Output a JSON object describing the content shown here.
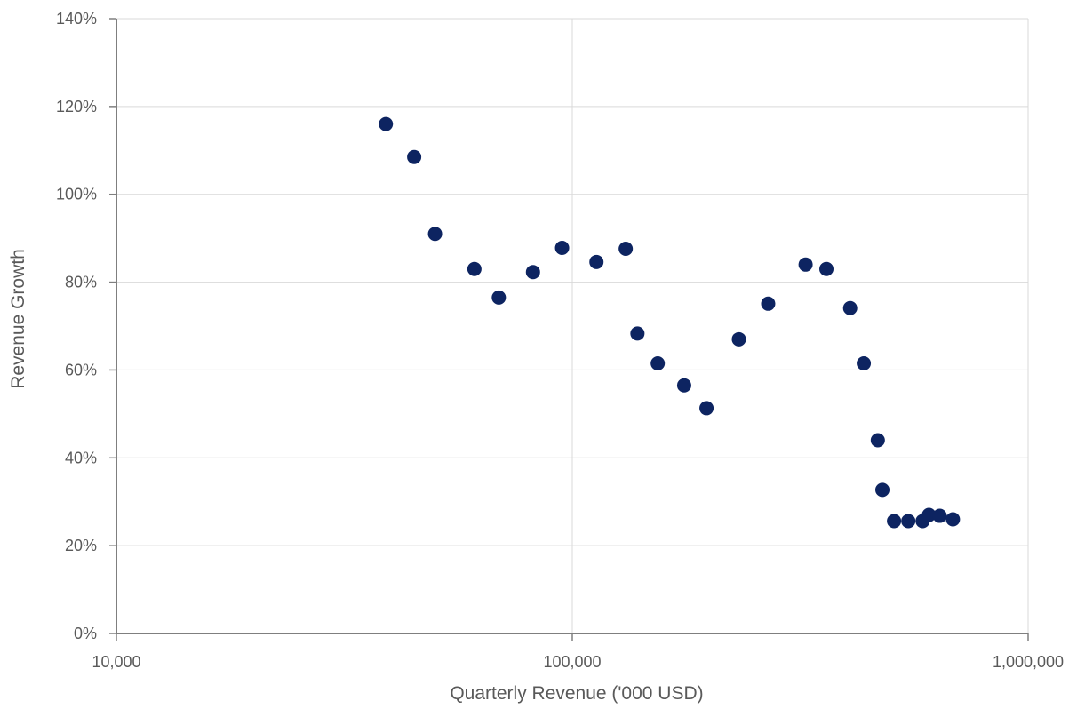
{
  "chart_data": {
    "type": "scatter",
    "title": "",
    "xlabel": "Quarterly Revenue ('000 USD)",
    "ylabel": "Revenue Growth",
    "x_scale": "log",
    "xlim": [
      10000,
      1000000
    ],
    "ylim": [
      0,
      1.4
    ],
    "x_ticks": [
      10000,
      100000,
      1000000
    ],
    "x_tick_labels": [
      "10,000",
      "100,000",
      "1,000,000"
    ],
    "y_ticks": [
      0,
      0.2,
      0.4,
      0.6,
      0.8,
      1.0,
      1.2,
      1.4
    ],
    "y_tick_labels": [
      "0%",
      "20%",
      "40%",
      "60%",
      "80%",
      "100%",
      "120%",
      "140%"
    ],
    "grid": true,
    "legend": "none",
    "marker_color": "#0d2461",
    "series": [
      {
        "x": [
          39000,
          45000,
          50000,
          61000,
          69000,
          82000,
          95000,
          113000,
          131000,
          139000,
          154000,
          176000,
          197000,
          232000,
          269000,
          325000,
          361000,
          407000,
          436000,
          468000,
          479000,
          508000,
          546000,
          587000,
          606000,
          640000,
          684000
        ],
        "y": [
          1.16,
          1.085,
          0.91,
          0.83,
          0.765,
          0.823,
          0.878,
          0.846,
          0.876,
          0.683,
          0.615,
          0.565,
          0.513,
          0.67,
          0.751,
          0.84,
          0.83,
          0.741,
          0.615,
          0.44,
          0.327,
          0.256,
          0.256,
          0.256,
          0.27,
          0.268,
          0.26
        ]
      }
    ]
  }
}
